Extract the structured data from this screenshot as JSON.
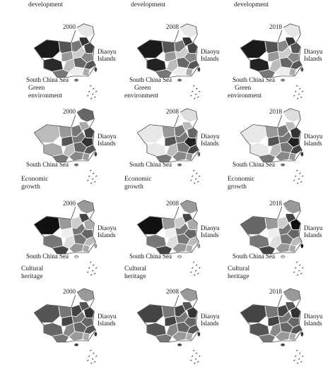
{
  "figure": {
    "top_row_captions": [
      "development",
      "development",
      "development"
    ],
    "rows": [
      {
        "years": [
          "2000",
          "2008",
          "2018"
        ],
        "islands_label": [
          "Diaoyu",
          "Islands"
        ],
        "sea_label": "South China Sea",
        "caption_below": [
          "Green",
          "environment"
        ],
        "shades": [
          [
            "#1a1a1a",
            "#2a2a2a",
            "#555",
            "#777",
            "#e6e6e6",
            "#333",
            "#999",
            "#ccc",
            "#444",
            "#888",
            "#bbb",
            "#666",
            "#eee",
            "#777",
            "#555",
            "#aaa"
          ],
          [
            "#1a1a1a",
            "#222",
            "#555",
            "#777",
            "#e6e6e6",
            "#333",
            "#999",
            "#ccc",
            "#444",
            "#888",
            "#bbb",
            "#666",
            "#eee",
            "#777",
            "#555",
            "#aaa"
          ],
          [
            "#1a1a1a",
            "#222",
            "#555",
            "#888",
            "#e6e6e6",
            "#333",
            "#999",
            "#ccc",
            "#555",
            "#888",
            "#bbb",
            "#666",
            "#eee",
            "#777",
            "#555",
            "#aaa"
          ]
        ]
      },
      {
        "years": [
          "2000",
          "2008",
          "2018"
        ],
        "islands_label": [
          "Diaoyu",
          "Islands"
        ],
        "sea_label": "South China Sea",
        "caption_below": [
          "Economic",
          "growth"
        ],
        "shades": [
          [
            "#bbb",
            "#aaa",
            "#999",
            "#777",
            "#666",
            "#aaa",
            "#555",
            "#777",
            "#444",
            "#333",
            "#bbb",
            "#666",
            "#888",
            "#777",
            "#555",
            "#999"
          ],
          [
            "#e8e8e8",
            "#e8e8e8",
            "#999",
            "#777",
            "#ddd",
            "#bbb",
            "#555",
            "#777",
            "#666",
            "#222",
            "#bbb",
            "#777",
            "#888",
            "#777",
            "#444",
            "#999"
          ],
          [
            "#e8e8e8",
            "#e8e8e8",
            "#999",
            "#777",
            "#ddd",
            "#bbb",
            "#555",
            "#777",
            "#333",
            "#222",
            "#bbb",
            "#777",
            "#888",
            "#777",
            "#444",
            "#999"
          ]
        ]
      },
      {
        "years": [
          "2000",
          "2008",
          "2018"
        ],
        "islands_label": [
          "Diaoyu",
          "Islands"
        ],
        "sea_label": "South China Sea",
        "caption_below": [
          "Cultural",
          "heritage"
        ],
        "shades": [
          [
            "#111",
            "#777",
            "#999",
            "#ccc",
            "#999",
            "#444",
            "#eee",
            "#777",
            "#aaa",
            "#666",
            "#ddd",
            "#777",
            "#999",
            "#444",
            "#bbb",
            "#aaa"
          ],
          [
            "#111",
            "#777",
            "#999",
            "#ccc",
            "#999",
            "#444",
            "#eee",
            "#777",
            "#aaa",
            "#666",
            "#ddd",
            "#777",
            "#999",
            "#444",
            "#bbb",
            "#aaa"
          ],
          [
            "#666",
            "#777",
            "#999",
            "#ccc",
            "#999",
            "#444",
            "#eee",
            "#777",
            "#111",
            "#666",
            "#ddd",
            "#777",
            "#999",
            "#444",
            "#bbb",
            "#aaa"
          ]
        ]
      },
      {
        "years": [
          "2000",
          "2008",
          "2018"
        ],
        "islands_label": [
          "Diaoyu",
          "Islands"
        ],
        "sea_label": "",
        "caption_below": [],
        "shades": [
          [
            "#555",
            "#666",
            "#777",
            "#444",
            "#999",
            "#555",
            "#444",
            "#777",
            "#333",
            "#666",
            "#888",
            "#666",
            "#999",
            "#777",
            "#555",
            "#aaa"
          ],
          [
            "#444",
            "#555",
            "#777",
            "#444",
            "#999",
            "#555",
            "#444",
            "#777",
            "#333",
            "#666",
            "#888",
            "#666",
            "#999",
            "#777",
            "#555",
            "#aaa"
          ],
          [
            "#444",
            "#555",
            "#777",
            "#444",
            "#999",
            "#555",
            "#444",
            "#777",
            "#333",
            "#666",
            "#888",
            "#666",
            "#999",
            "#777",
            "#555",
            "#aaa"
          ]
        ]
      }
    ]
  }
}
